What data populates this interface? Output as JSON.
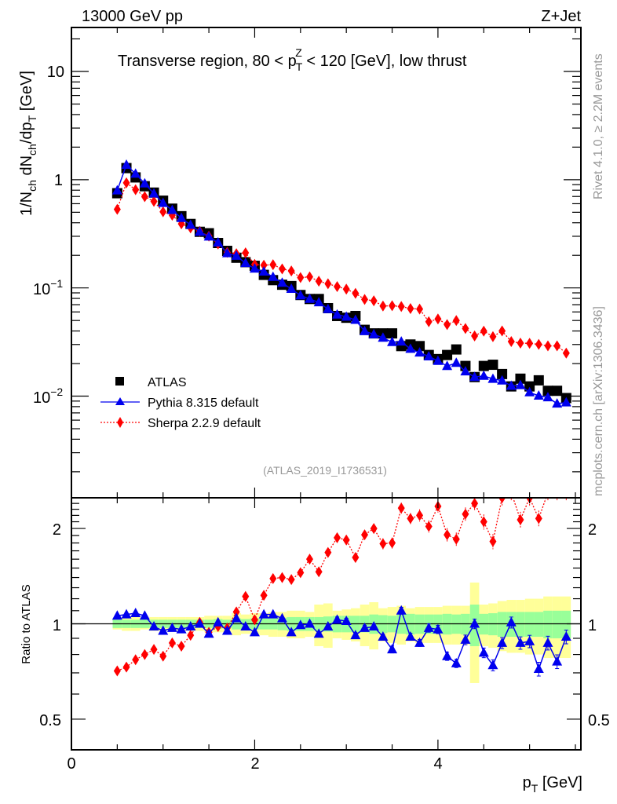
{
  "chart_data": {
    "type": "scatter",
    "header_left": "13000 GeV pp",
    "header_right": "Z+Jet",
    "title": "Transverse region, 80 < p_T^Z < 120 [GeV], low thrust",
    "title_parts": {
      "pre": "Transverse region, 80 < p",
      "sup": "Z",
      "sub": "T",
      "post": " < 120 [GeV], low thrust"
    },
    "side_text_top": "Rivet 4.1.0, ≥ 2.2M events",
    "side_text_bottom": "mcplots.cern.ch [arXiv:1306.3436]",
    "analysis_id": "(ATLAS_2019_I1736531)",
    "xlabel": "p_T [GeV]",
    "xlabel_parts": {
      "main": "p",
      "sub": "T",
      "unit": " [GeV]"
    },
    "ylabel": "1/N_ch dN_ch/dp_T [GeV]",
    "ylabel_parts": [
      "1/N",
      "ch",
      " dN",
      "ch",
      "/dp",
      "T",
      " [GeV]"
    ],
    "ratio_ylabel": "Ratio to ATLAS",
    "xlim": [
      0,
      5.56
    ],
    "x_ticks": [
      0,
      2,
      4
    ],
    "x_tick_labels": [
      "0",
      "2",
      "4"
    ],
    "main_ylim": [
      0.00115,
      25.5
    ],
    "main_yscale": "log",
    "main_y_ticks": [
      10,
      1,
      0.1,
      0.01
    ],
    "main_y_tick_labels": [
      {
        "base": "10",
        "exp": ""
      },
      {
        "base": "1",
        "exp": ""
      },
      {
        "base": "10",
        "exp": "−1"
      },
      {
        "base": "10",
        "exp": "−2"
      }
    ],
    "ratio_ylim": [
      0.4,
      2.5
    ],
    "ratio_yscale": "log",
    "ratio_y_ticks": [
      2,
      1,
      0.5
    ],
    "ratio_y_tick_labels": [
      "2",
      "1",
      "0.5"
    ],
    "legend_position": "lower-left",
    "x": [
      0.5,
      0.6,
      0.7,
      0.8,
      0.9,
      1.0,
      1.1,
      1.2,
      1.3,
      1.4,
      1.5,
      1.6,
      1.7,
      1.8,
      1.9,
      2.0,
      2.1,
      2.2,
      2.3,
      2.4,
      2.5,
      2.6,
      2.7,
      2.8,
      2.9,
      3.0,
      3.1,
      3.2,
      3.3,
      3.4,
      3.5,
      3.6,
      3.7,
      3.8,
      3.9,
      4.0,
      4.1,
      4.2,
      4.3,
      4.4,
      4.5,
      4.6,
      4.7,
      4.8,
      4.9,
      5.0,
      5.1,
      5.2,
      5.3,
      5.4
    ],
    "bin_width": 0.1,
    "series": [
      {
        "name": "ATLAS",
        "marker": "square",
        "color": "#000000",
        "line": "none",
        "values": [
          0.75,
          1.28,
          1.05,
          0.87,
          0.76,
          0.64,
          0.54,
          0.46,
          0.39,
          0.33,
          0.32,
          0.26,
          0.22,
          0.19,
          0.173,
          0.16,
          0.132,
          0.118,
          0.107,
          0.104,
          0.086,
          0.079,
          0.079,
          0.065,
          0.055,
          0.053,
          0.055,
          0.041,
          0.038,
          0.038,
          0.038,
          0.029,
          0.03,
          0.029,
          0.024,
          0.022,
          0.024,
          0.027,
          0.019,
          0.015,
          0.019,
          0.0195,
          0.016,
          0.0123,
          0.0145,
          0.0123,
          0.014,
          0.0112,
          0.0112,
          0.0096
        ],
        "band_inner_rel": [
          0.03,
          0.03,
          0.03,
          0.03,
          0.03,
          0.03,
          0.03,
          0.03,
          0.03,
          0.03,
          0.03,
          0.035,
          0.03,
          0.04,
          0.035,
          0.04,
          0.04,
          0.04,
          0.045,
          0.05,
          0.05,
          0.05,
          0.05,
          0.055,
          0.06,
          0.06,
          0.06,
          0.06,
          0.07,
          0.065,
          0.06,
          0.07,
          0.075,
          0.07,
          0.07,
          0.07,
          0.075,
          0.07,
          0.075,
          0.15,
          0.075,
          0.08,
          0.09,
          0.09,
          0.09,
          0.09,
          0.09,
          0.1,
          0.1,
          0.1
        ],
        "band_outer_rel": [
          0.04,
          0.05,
          0.05,
          0.04,
          0.05,
          0.05,
          0.05,
          0.05,
          0.05,
          0.05,
          0.06,
          0.06,
          0.06,
          0.08,
          0.07,
          0.08,
          0.08,
          0.09,
          0.09,
          0.1,
          0.1,
          0.09,
          0.15,
          0.16,
          0.1,
          0.11,
          0.12,
          0.15,
          0.17,
          0.12,
          0.13,
          0.14,
          0.12,
          0.13,
          0.13,
          0.13,
          0.14,
          0.14,
          0.14,
          0.35,
          0.15,
          0.16,
          0.18,
          0.19,
          0.19,
          0.2,
          0.2,
          0.22,
          0.22,
          0.22
        ]
      },
      {
        "name": "Pythia 8.315 default",
        "marker": "triangle",
        "color": "#0000ee",
        "line": "solid",
        "ratio": [
          1.06,
          1.07,
          1.08,
          1.06,
          0.98,
          0.95,
          0.97,
          0.96,
          0.98,
          1.0,
          0.93,
          1.01,
          0.95,
          1.04,
          0.98,
          0.94,
          1.07,
          1.07,
          1.04,
          0.94,
          0.99,
          1.0,
          0.93,
          0.98,
          1.03,
          1.02,
          0.92,
          0.97,
          0.98,
          0.91,
          0.83,
          1.1,
          0.91,
          0.87,
          0.97,
          0.96,
          0.79,
          0.75,
          0.89,
          1.0,
          0.81,
          0.74,
          0.87,
          1.01,
          0.87,
          0.88,
          0.72,
          0.87,
          0.76,
          0.91
        ],
        "ratio_err_rel": [
          0.01,
          0.01,
          0.01,
          0.01,
          0.01,
          0.01,
          0.01,
          0.01,
          0.01,
          0.01,
          0.01,
          0.01,
          0.01,
          0.01,
          0.01,
          0.01,
          0.01,
          0.01,
          0.01,
          0.01,
          0.015,
          0.015,
          0.015,
          0.015,
          0.02,
          0.02,
          0.02,
          0.02,
          0.02,
          0.02,
          0.025,
          0.025,
          0.025,
          0.025,
          0.03,
          0.03,
          0.03,
          0.03,
          0.035,
          0.035,
          0.035,
          0.04,
          0.04,
          0.04,
          0.045,
          0.045,
          0.05,
          0.05,
          0.05,
          0.05
        ]
      },
      {
        "name": "Sherpa 2.2.9 default",
        "marker": "diamond",
        "color": "#ff0000",
        "line": "dotted",
        "ratio": [
          0.71,
          0.73,
          0.77,
          0.8,
          0.83,
          0.79,
          0.87,
          0.85,
          0.92,
          1.01,
          0.94,
          0.98,
          0.97,
          1.09,
          1.22,
          1.03,
          1.23,
          1.39,
          1.4,
          1.38,
          1.45,
          1.6,
          1.46,
          1.68,
          1.87,
          1.84,
          1.62,
          1.91,
          2.0,
          1.79,
          1.8,
          2.32,
          2.15,
          2.2,
          2.03,
          2.35,
          1.91,
          1.85,
          2.22,
          2.4,
          2.1,
          1.82,
          2.5,
          2.6,
          2.13,
          2.5,
          2.15,
          2.6,
          2.6,
          2.6
        ],
        "ratio_err_rel": [
          0.01,
          0.01,
          0.01,
          0.01,
          0.01,
          0.01,
          0.01,
          0.01,
          0.015,
          0.015,
          0.015,
          0.015,
          0.02,
          0.02,
          0.02,
          0.02,
          0.02,
          0.02,
          0.025,
          0.025,
          0.025,
          0.025,
          0.03,
          0.03,
          0.03,
          0.03,
          0.035,
          0.035,
          0.035,
          0.04,
          0.04,
          0.04,
          0.04,
          0.045,
          0.045,
          0.045,
          0.05,
          0.05,
          0.05,
          0.05,
          0.055,
          0.055,
          0.06,
          0.06,
          0.06,
          0.06,
          0.06,
          0.06,
          0.06,
          0.06
        ]
      }
    ]
  }
}
